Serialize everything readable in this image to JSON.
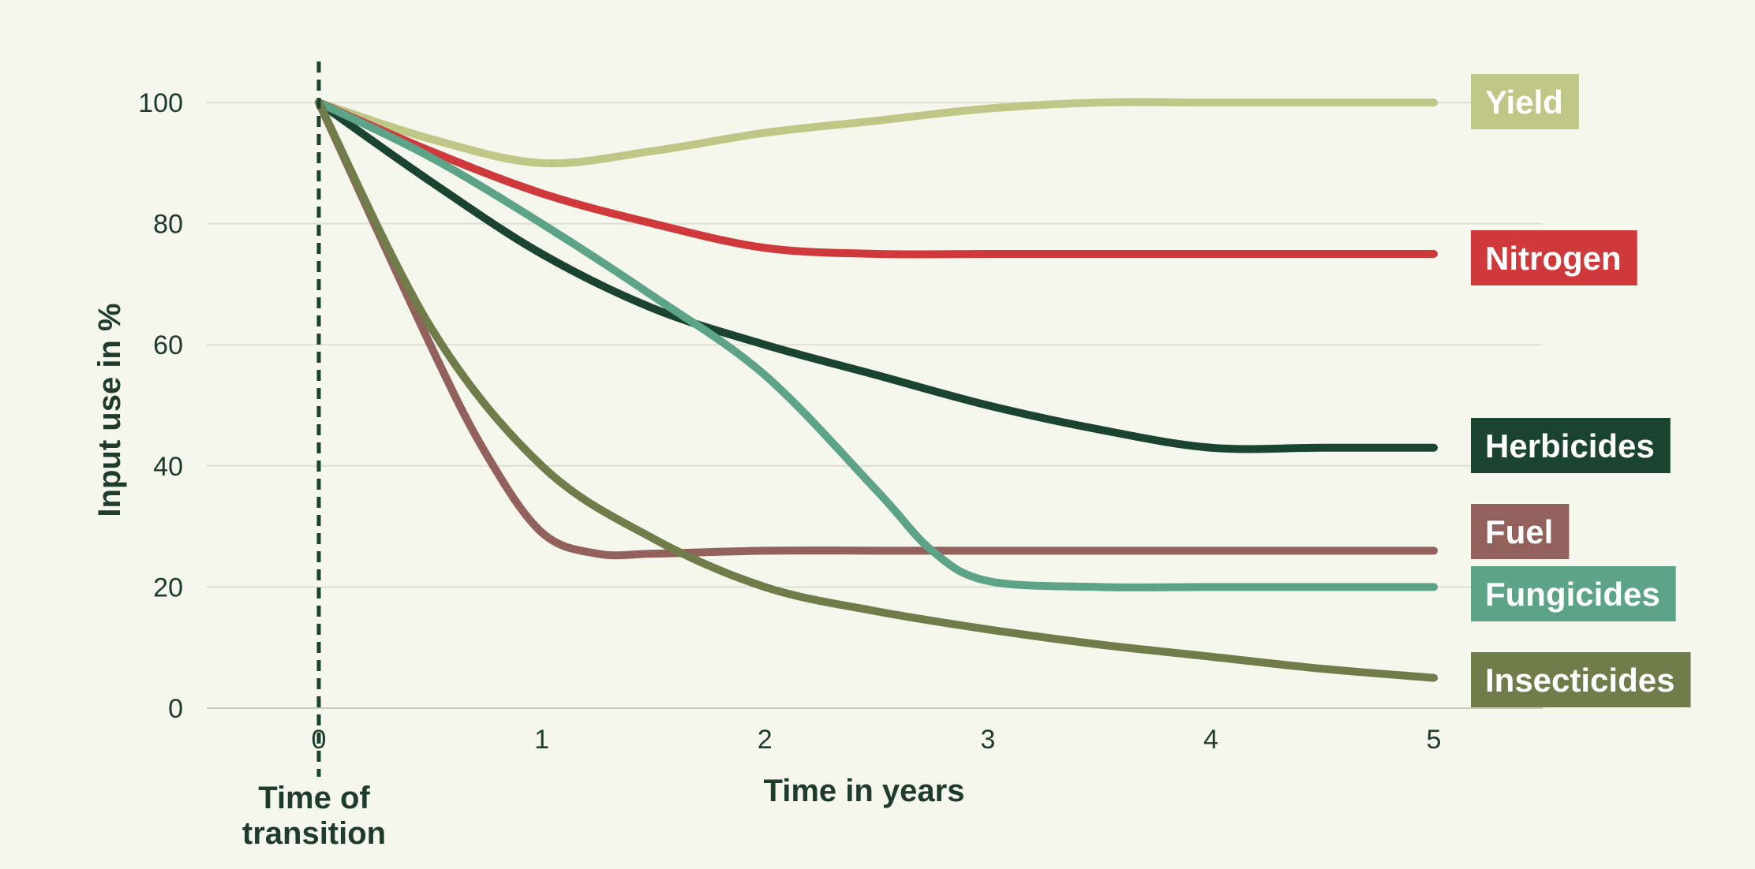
{
  "chart_data": {
    "type": "line",
    "xlabel": "Time in years",
    "ylabel": "Input use in %",
    "xlim": [
      -0.5,
      5.5
    ],
    "ylim": [
      0,
      100
    ],
    "xticks": [
      0,
      1,
      2,
      3,
      4,
      5
    ],
    "yticks": [
      0,
      20,
      40,
      60,
      80,
      100
    ],
    "grid": "horizontal",
    "legend": "direct labels at right end of lines",
    "marker": {
      "x": 0,
      "label_line1": "Time of",
      "label_line2": "transition",
      "style": "dashed-vertical"
    },
    "series": [
      {
        "name": "Yield",
        "color": "#bec785",
        "x": [
          0,
          0.5,
          1,
          1.5,
          2,
          2.5,
          3,
          3.5,
          4,
          4.5,
          5
        ],
        "y": [
          100,
          94,
          90,
          92,
          95,
          97,
          99,
          100,
          100,
          100,
          100
        ]
      },
      {
        "name": "Nitrogen",
        "color": "#d0393b",
        "x": [
          0,
          0.5,
          1,
          1.5,
          2,
          2.5,
          3,
          3.5,
          4,
          4.5,
          5
        ],
        "y": [
          100,
          92,
          85,
          80,
          76,
          75,
          75,
          75,
          75,
          75,
          75
        ]
      },
      {
        "name": "Herbicides",
        "color": "#1b4430",
        "x": [
          0,
          0.5,
          1,
          1.5,
          2,
          2.5,
          3,
          3.5,
          4,
          4.5,
          5
        ],
        "y": [
          100,
          87,
          75,
          66,
          60,
          55,
          50,
          46,
          43,
          43,
          43
        ]
      },
      {
        "name": "Fuel",
        "color": "#93615c",
        "x": [
          0,
          0.5,
          0.75,
          1,
          1.25,
          1.5,
          2,
          2.5,
          3,
          3.5,
          4,
          4.5,
          5
        ],
        "y": [
          100,
          60,
          42,
          29,
          25.5,
          25.5,
          26,
          26,
          26,
          26,
          26,
          26,
          26
        ]
      },
      {
        "name": "Fungicides",
        "color": "#5da388",
        "x": [
          0,
          0.5,
          1,
          1.5,
          2,
          2.5,
          2.75,
          3,
          3.5,
          4,
          4.5,
          5
        ],
        "y": [
          100,
          91,
          80,
          68,
          55,
          36,
          26,
          21,
          20,
          20,
          20,
          20
        ]
      },
      {
        "name": "Insecticides",
        "color": "#707d4a",
        "x": [
          0,
          0.5,
          1,
          1.5,
          2,
          2.5,
          3,
          3.5,
          4,
          4.5,
          5
        ],
        "y": [
          100,
          63,
          40,
          28,
          20,
          16,
          13,
          10.5,
          8.5,
          6.5,
          5
        ]
      }
    ]
  }
}
